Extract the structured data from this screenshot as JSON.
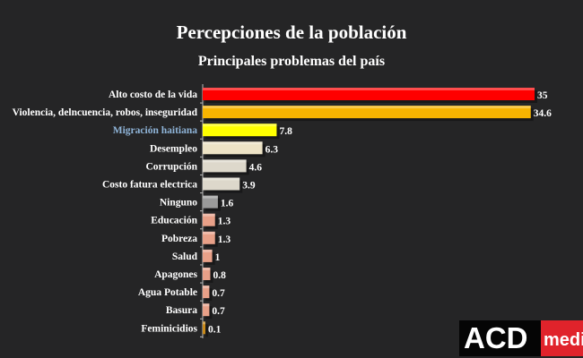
{
  "chart_data": {
    "type": "bar",
    "orientation": "horizontal",
    "title": "Percepciones de la población",
    "subtitle": "Principales problemas del país",
    "categories": [
      "Alto costo de la vida",
      "Violencia, delncuencia, robos, inseguridad",
      "Migración haitiana",
      "Desempleo",
      "Corrupción",
      "Costo fatura electrica",
      "Ninguno",
      "Educación",
      "Pobreza",
      "Salud",
      "Apagones",
      "Agua Potable",
      "Basura",
      "Feminicidios"
    ],
    "values": [
      35,
      34.6,
      7.8,
      6.3,
      4.6,
      3.9,
      1.6,
      1.3,
      1.3,
      1,
      0.8,
      0.7,
      0.7,
      0.1
    ],
    "value_labels": [
      "35",
      "34.6",
      "7.8",
      "6.3",
      "4.6",
      "3.9",
      "1.6",
      "1.3",
      "1.3",
      "1",
      "0.8",
      "0.7",
      "0.7",
      "0.1"
    ],
    "colors": [
      "#ff0000",
      "#f7b400",
      "#ffff00",
      "#ede3c6",
      "#ddd8cb",
      "#ddd8cb",
      "#9a9a9a",
      "#e8a088",
      "#e8a088",
      "#e8a088",
      "#e8a088",
      "#e8a088",
      "#e8a088",
      "#c88a1a"
    ],
    "highlight_label_color": "#8fb4d8",
    "highlight_index": 2,
    "xlim": [
      0,
      35
    ]
  },
  "logo": {
    "text_a": "ACD",
    "text_b": "media"
  }
}
